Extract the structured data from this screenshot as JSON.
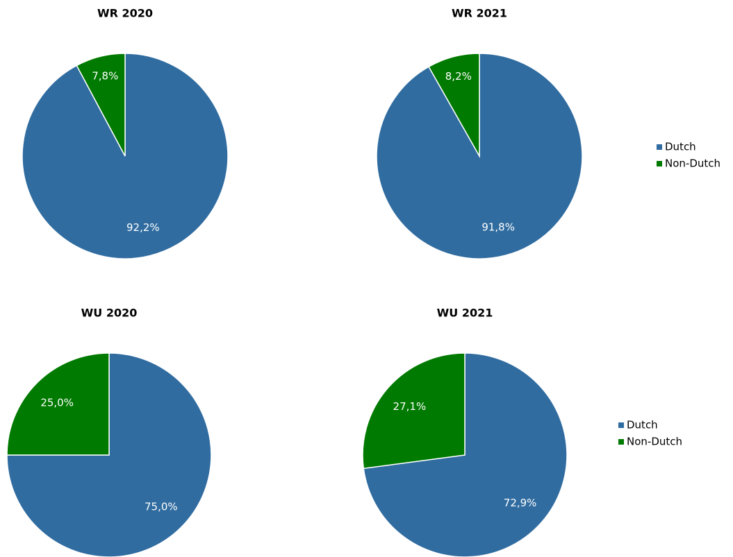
{
  "chart_data": [
    {
      "type": "pie",
      "title": "WR 2020",
      "categories": [
        "Dutch",
        "Non-Dutch"
      ],
      "values": [
        92.2,
        7.8
      ],
      "value_labels": [
        "92,2%",
        "7,8%"
      ],
      "colors": [
        "#306ca0",
        "#007a00"
      ]
    },
    {
      "type": "pie",
      "title": "WR 2021",
      "categories": [
        "Dutch",
        "Non-Dutch"
      ],
      "values": [
        91.8,
        8.2
      ],
      "value_labels": [
        "91,8%",
        "8,2%"
      ],
      "colors": [
        "#306ca0",
        "#007a00"
      ],
      "legend": "right"
    },
    {
      "type": "pie",
      "title": "WU 2020",
      "categories": [
        "Dutch",
        "Non-Dutch"
      ],
      "values": [
        75.0,
        25.0
      ],
      "value_labels": [
        "75,0%",
        "25,0%"
      ],
      "colors": [
        "#306ca0",
        "#007a00"
      ]
    },
    {
      "type": "pie",
      "title": "WU 2021",
      "categories": [
        "Dutch",
        "Non-Dutch"
      ],
      "values": [
        72.9,
        27.1
      ],
      "value_labels": [
        "72,9%",
        "27,1%"
      ],
      "colors": [
        "#306ca0",
        "#007a00"
      ],
      "legend": "right"
    }
  ]
}
